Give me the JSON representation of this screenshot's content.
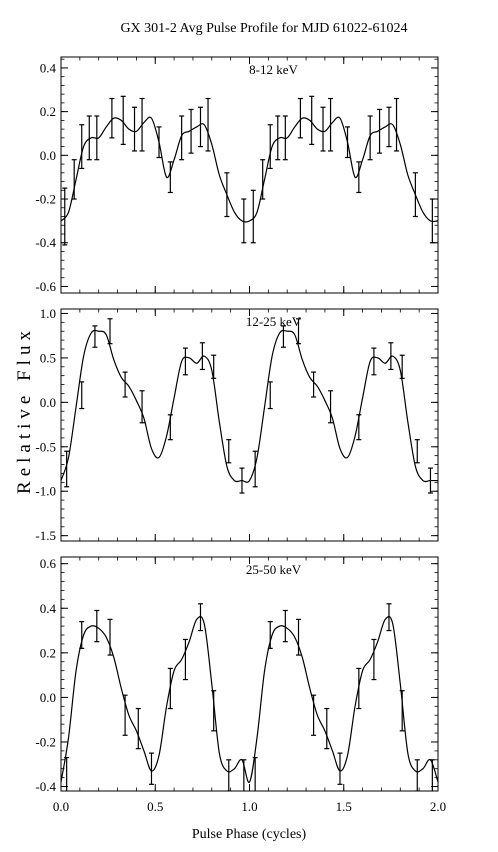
{
  "title": "GX 301-2   Avg Pulse Profile for MJD 61022-61024",
  "ylabel": "Relative Flux",
  "xlabel": "Pulse Phase (cycles)",
  "chart_data": [
    {
      "type": "line",
      "label": "8-12 keV",
      "xlim": [
        0,
        2
      ],
      "ylim": [
        -0.63,
        0.45
      ],
      "yticks": [
        -0.6,
        -0.4,
        -0.2,
        0.0,
        0.2,
        0.4
      ],
      "ytick_labels": [
        "-0.6",
        "-0.4",
        "-0.2",
        "0.0",
        "0.2",
        "0.4"
      ],
      "xticks": [
        0.0,
        0.5,
        1.0,
        1.5,
        2.0
      ],
      "x": [
        0.0,
        0.04,
        0.08,
        0.12,
        0.16,
        0.2,
        0.24,
        0.28,
        0.32,
        0.36,
        0.4,
        0.44,
        0.48,
        0.52,
        0.56,
        0.6,
        0.64,
        0.68,
        0.72,
        0.76,
        0.8,
        0.84,
        0.88,
        0.92,
        0.96,
        1.0,
        1.04,
        1.08,
        1.12,
        1.16,
        1.2,
        1.24,
        1.28,
        1.32,
        1.36,
        1.4,
        1.44,
        1.48,
        1.52,
        1.56,
        1.6,
        1.64,
        1.68,
        1.72,
        1.76,
        1.8,
        1.84,
        1.88,
        1.92,
        1.96,
        2.0
      ],
      "y": [
        -0.3,
        -0.26,
        -0.11,
        0.04,
        0.08,
        0.08,
        0.13,
        0.17,
        0.16,
        0.12,
        0.11,
        0.15,
        0.17,
        0.06,
        -0.1,
        -0.02,
        0.09,
        0.11,
        0.13,
        0.14,
        0.05,
        -0.09,
        -0.18,
        -0.26,
        -0.3,
        -0.3,
        -0.26,
        -0.11,
        0.04,
        0.08,
        0.08,
        0.13,
        0.17,
        0.16,
        0.12,
        0.11,
        0.15,
        0.17,
        0.06,
        -0.1,
        -0.02,
        0.09,
        0.11,
        0.13,
        0.14,
        0.05,
        -0.09,
        -0.18,
        -0.26,
        -0.3,
        -0.3
      ],
      "err_x": [
        0.02,
        0.07,
        0.11,
        0.15,
        0.19,
        0.27,
        0.33,
        0.39,
        0.43,
        0.52,
        0.58,
        0.64,
        0.69,
        0.74,
        0.78,
        0.88,
        0.97,
        1.02,
        1.07,
        1.11,
        1.15,
        1.19,
        1.27,
        1.33,
        1.39,
        1.43,
        1.52,
        1.58,
        1.64,
        1.69,
        1.74,
        1.78,
        1.88,
        1.97
      ],
      "err_y": [
        -0.28,
        -0.11,
        0.04,
        0.08,
        0.08,
        0.17,
        0.16,
        0.12,
        0.14,
        0.06,
        -0.1,
        0.08,
        0.11,
        0.13,
        0.14,
        -0.18,
        -0.3,
        -0.28,
        -0.11,
        0.04,
        0.08,
        0.08,
        0.17,
        0.16,
        0.12,
        0.14,
        0.06,
        -0.1,
        0.08,
        0.11,
        0.13,
        0.14,
        -0.18,
        -0.3
      ],
      "err_val": [
        0.13,
        0.09,
        0.1,
        0.1,
        0.1,
        0.09,
        0.11,
        0.1,
        0.12,
        0.07,
        0.07,
        0.1,
        0.1,
        0.09,
        0.12,
        0.1,
        0.1,
        0.12,
        0.09,
        0.1,
        0.1,
        0.1,
        0.09,
        0.11,
        0.1,
        0.12,
        0.07,
        0.07,
        0.1,
        0.1,
        0.09,
        0.12,
        0.1,
        0.1
      ]
    },
    {
      "type": "line",
      "label": "12-25 keV",
      "xlim": [
        0,
        2
      ],
      "ylim": [
        -1.56,
        1.05
      ],
      "yticks": [
        -1.5,
        -1.0,
        -0.5,
        0.0,
        0.5,
        1.0
      ],
      "ytick_labels": [
        "-1.5",
        "-1.0",
        "-0.5",
        "0.0",
        "0.5",
        "1.0"
      ],
      "xticks": [
        0.0,
        0.5,
        1.0,
        1.5,
        2.0
      ],
      "x": [
        0.0,
        0.04,
        0.08,
        0.12,
        0.16,
        0.2,
        0.24,
        0.28,
        0.32,
        0.36,
        0.4,
        0.44,
        0.48,
        0.52,
        0.56,
        0.6,
        0.64,
        0.68,
        0.72,
        0.76,
        0.8,
        0.84,
        0.88,
        0.92,
        0.96,
        1.0,
        1.04,
        1.08,
        1.12,
        1.16,
        1.2,
        1.24,
        1.28,
        1.32,
        1.36,
        1.4,
        1.44,
        1.48,
        1.52,
        1.56,
        1.6,
        1.64,
        1.68,
        1.72,
        1.76,
        1.8,
        1.84,
        1.88,
        1.92,
        1.96,
        2.0
      ],
      "y": [
        -0.88,
        -0.62,
        -0.05,
        0.52,
        0.78,
        0.8,
        0.76,
        0.48,
        0.28,
        0.18,
        0.02,
        -0.18,
        -0.52,
        -0.62,
        -0.38,
        0.05,
        0.46,
        0.5,
        0.44,
        0.52,
        0.36,
        -0.22,
        -0.72,
        -0.88,
        -0.88,
        -0.88,
        -0.62,
        -0.05,
        0.52,
        0.78,
        0.8,
        0.76,
        0.48,
        0.28,
        0.18,
        0.02,
        -0.18,
        -0.52,
        -0.62,
        -0.38,
        0.05,
        0.46,
        0.5,
        0.44,
        0.52,
        0.36,
        -0.22,
        -0.72,
        -0.88,
        -0.88,
        -0.88
      ],
      "err_x": [
        0.03,
        0.11,
        0.18,
        0.26,
        0.34,
        0.43,
        0.58,
        0.66,
        0.75,
        0.81,
        0.89,
        0.96,
        1.03,
        1.11,
        1.18,
        1.26,
        1.34,
        1.43,
        1.58,
        1.66,
        1.75,
        1.81,
        1.89,
        1.96
      ],
      "err_y": [
        -0.75,
        0.08,
        0.74,
        0.8,
        0.2,
        -0.05,
        -0.28,
        0.46,
        0.52,
        0.4,
        -0.55,
        -0.88,
        -0.75,
        0.08,
        0.74,
        0.8,
        0.2,
        -0.05,
        -0.28,
        0.46,
        0.52,
        0.4,
        -0.55,
        -0.88
      ],
      "err_val": [
        0.2,
        0.15,
        0.12,
        0.14,
        0.14,
        0.18,
        0.14,
        0.15,
        0.15,
        0.13,
        0.13,
        0.14,
        0.2,
        0.15,
        0.12,
        0.14,
        0.14,
        0.18,
        0.14,
        0.15,
        0.15,
        0.13,
        0.13,
        0.14
      ]
    },
    {
      "type": "line",
      "label": "25-50 keV",
      "xlim": [
        0,
        2
      ],
      "ylim": [
        -0.42,
        0.63
      ],
      "yticks": [
        -0.4,
        -0.2,
        0.0,
        0.2,
        0.4,
        0.6
      ],
      "ytick_labels": [
        "-0.4",
        "-0.2",
        "0.0",
        "0.2",
        "0.4",
        "0.6"
      ],
      "xticks": [
        0.0,
        0.5,
        1.0,
        1.5,
        2.0
      ],
      "xtick_labels": [
        "0.0",
        "0.5",
        "1.0",
        "1.5",
        "2.0"
      ],
      "x": [
        0.0,
        0.04,
        0.08,
        0.12,
        0.16,
        0.2,
        0.24,
        0.28,
        0.32,
        0.36,
        0.4,
        0.44,
        0.48,
        0.52,
        0.56,
        0.6,
        0.64,
        0.68,
        0.72,
        0.76,
        0.8,
        0.84,
        0.88,
        0.92,
        0.96,
        1.0,
        1.04,
        1.08,
        1.12,
        1.16,
        1.2,
        1.24,
        1.28,
        1.32,
        1.36,
        1.4,
        1.44,
        1.48,
        1.52,
        1.56,
        1.6,
        1.64,
        1.68,
        1.72,
        1.76,
        1.8,
        1.84,
        1.88,
        1.92,
        1.96,
        2.0
      ],
      "y": [
        -0.38,
        -0.18,
        0.12,
        0.28,
        0.32,
        0.31,
        0.27,
        0.18,
        0.04,
        -0.08,
        -0.15,
        -0.24,
        -0.33,
        -0.26,
        -0.04,
        0.12,
        0.17,
        0.25,
        0.35,
        0.33,
        0.06,
        -0.25,
        -0.33,
        -0.32,
        -0.28,
        -0.38,
        -0.18,
        0.12,
        0.28,
        0.32,
        0.31,
        0.27,
        0.18,
        0.04,
        -0.08,
        -0.15,
        -0.24,
        -0.33,
        -0.26,
        -0.04,
        0.12,
        0.17,
        0.25,
        0.35,
        0.33,
        0.06,
        -0.25,
        -0.33,
        -0.32,
        -0.28,
        -0.38
      ],
      "err_x": [
        0.03,
        0.11,
        0.19,
        0.26,
        0.34,
        0.41,
        0.48,
        0.58,
        0.66,
        0.74,
        0.81,
        0.89,
        0.97,
        1.03,
        1.11,
        1.19,
        1.26,
        1.34,
        1.41,
        1.48,
        1.58,
        1.66,
        1.74,
        1.81,
        1.89,
        1.97
      ],
      "err_y": [
        -0.36,
        0.28,
        0.32,
        0.27,
        -0.08,
        -0.14,
        -0.32,
        0.04,
        0.17,
        0.36,
        -0.06,
        -0.35,
        -0.36,
        -0.36,
        0.28,
        0.32,
        0.27,
        -0.08,
        -0.14,
        -0.32,
        0.04,
        0.17,
        0.36,
        -0.06,
        -0.35,
        -0.36
      ],
      "err_val": [
        0.09,
        0.06,
        0.07,
        0.08,
        0.09,
        0.09,
        0.07,
        0.09,
        0.09,
        0.06,
        0.09,
        0.07,
        0.08,
        0.09,
        0.06,
        0.07,
        0.08,
        0.09,
        0.09,
        0.07,
        0.09,
        0.09,
        0.06,
        0.09,
        0.07,
        0.08
      ]
    }
  ]
}
